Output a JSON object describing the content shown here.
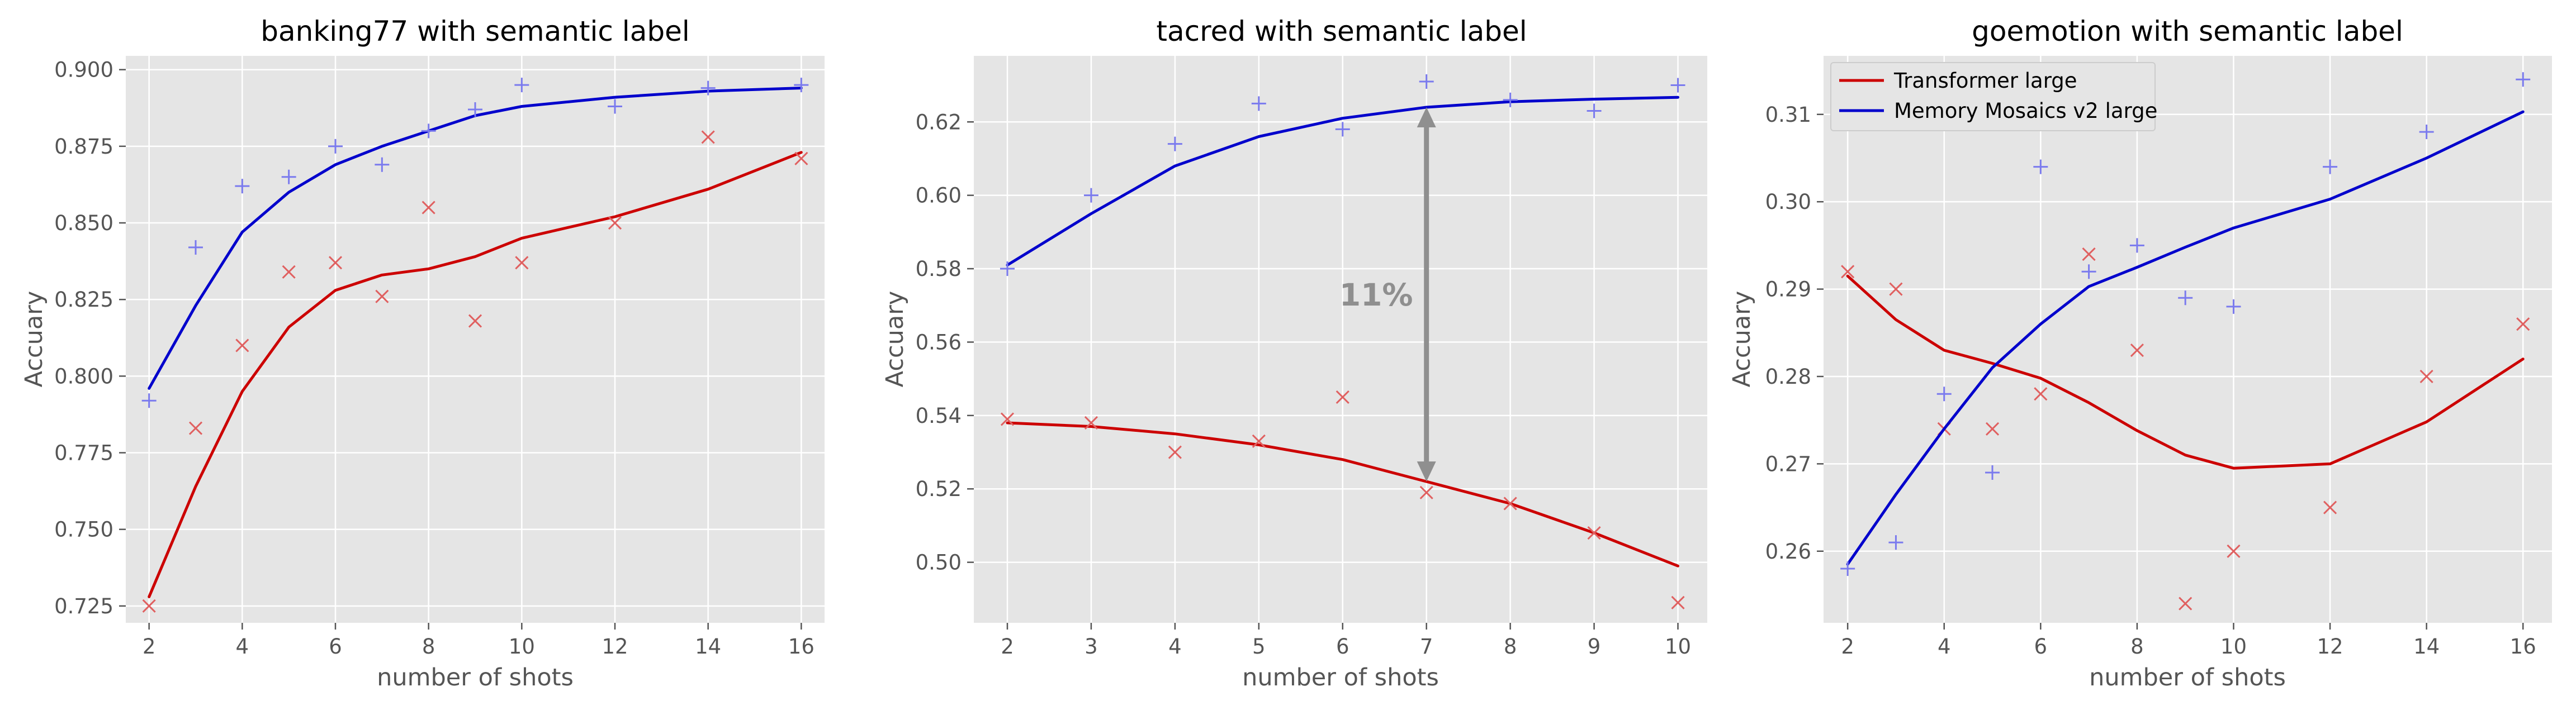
{
  "colors": {
    "transformer": "#cc0000",
    "memory": "#0000cc",
    "transformer_marker": "#e06060",
    "memory_marker": "#7a7aee",
    "panel_bg": "#e5e5e5",
    "grid": "#ffffff",
    "annotation": "#8f8f8f"
  },
  "chart_data": [
    {
      "type": "line",
      "title": "banking77 with semantic label",
      "xlabel": "number of shots",
      "ylabel": "Accuary",
      "xlim": [
        1.5,
        16.5
      ],
      "ylim": [
        0.7195,
        0.9045
      ],
      "xticks": [
        2,
        4,
        6,
        8,
        10,
        12,
        14,
        16
      ],
      "xtick_labels": [
        "2",
        "4",
        "6",
        "8",
        "10",
        "12",
        "14",
        "16"
      ],
      "yticks": [
        0.725,
        0.75,
        0.775,
        0.8,
        0.825,
        0.85,
        0.875,
        0.9
      ],
      "ytick_labels": [
        "0.725",
        "0.750",
        "0.775",
        "0.800",
        "0.825",
        "0.850",
        "0.875",
        "0.900"
      ],
      "grid": true,
      "series": [
        {
          "name": "Transformer large",
          "style": "line",
          "color_key": "transformer",
          "x": [
            2,
            3,
            4,
            5,
            6,
            7,
            8,
            9,
            10,
            12,
            14,
            16
          ],
          "y": [
            0.728,
            0.764,
            0.795,
            0.816,
            0.828,
            0.833,
            0.835,
            0.839,
            0.845,
            0.852,
            0.861,
            0.873
          ]
        },
        {
          "name": "Transformer large",
          "style": "markers-x",
          "color_key": "transformer_marker",
          "x": [
            2,
            3,
            4,
            5,
            6,
            7,
            8,
            9,
            10,
            12,
            14,
            16
          ],
          "y": [
            0.725,
            0.783,
            0.81,
            0.834,
            0.837,
            0.826,
            0.855,
            0.818,
            0.837,
            0.85,
            0.878,
            0.871
          ]
        },
        {
          "name": "Memory Mosaics v2 large",
          "style": "line",
          "color_key": "memory",
          "x": [
            2,
            3,
            4,
            5,
            6,
            7,
            8,
            9,
            10,
            12,
            14,
            16
          ],
          "y": [
            0.796,
            0.823,
            0.847,
            0.86,
            0.869,
            0.875,
            0.88,
            0.885,
            0.888,
            0.891,
            0.893,
            0.894
          ]
        },
        {
          "name": "Memory Mosaics v2 large",
          "style": "markers-plus",
          "color_key": "memory_marker",
          "x": [
            2,
            3,
            4,
            5,
            6,
            7,
            8,
            9,
            10,
            12,
            14,
            16
          ],
          "y": [
            0.792,
            0.842,
            0.862,
            0.865,
            0.875,
            0.869,
            0.88,
            0.887,
            0.895,
            0.888,
            0.894,
            0.895
          ]
        }
      ]
    },
    {
      "type": "line",
      "title": "tacred with semantic label",
      "xlabel": "number of shots",
      "ylabel": "Accuary",
      "xlim": [
        1.6,
        10.35
      ],
      "ylim": [
        0.4835,
        0.638
      ],
      "xticks": [
        2,
        3,
        4,
        5,
        6,
        7,
        8,
        9,
        10
      ],
      "xtick_labels": [
        "2",
        "3",
        "4",
        "5",
        "6",
        "7",
        "8",
        "9",
        "10"
      ],
      "yticks": [
        0.5,
        0.52,
        0.54,
        0.56,
        0.58,
        0.6,
        0.62
      ],
      "ytick_labels": [
        "0.50",
        "0.52",
        "0.54",
        "0.56",
        "0.58",
        "0.60",
        "0.62"
      ],
      "grid": true,
      "annotation": {
        "text": "11%",
        "x": 7,
        "y_top": 0.624,
        "y_bottom": 0.522,
        "text_x": 6.4,
        "text_y": 0.573
      },
      "series": [
        {
          "name": "Transformer large",
          "style": "line",
          "color_key": "transformer",
          "x": [
            2,
            3,
            4,
            5,
            6,
            7,
            8,
            9,
            10
          ],
          "y": [
            0.538,
            0.537,
            0.535,
            0.532,
            0.528,
            0.522,
            0.516,
            0.508,
            0.499
          ]
        },
        {
          "name": "Transformer large",
          "style": "markers-x",
          "color_key": "transformer_marker",
          "x": [
            2,
            3,
            4,
            5,
            6,
            7,
            8,
            9,
            10
          ],
          "y": [
            0.539,
            0.538,
            0.53,
            0.533,
            0.545,
            0.519,
            0.516,
            0.508,
            0.489
          ]
        },
        {
          "name": "Memory Mosaics v2 large",
          "style": "line",
          "color_key": "memory",
          "x": [
            2,
            3,
            4,
            5,
            6,
            7,
            8,
            9,
            10
          ],
          "y": [
            0.581,
            0.595,
            0.608,
            0.616,
            0.621,
            0.624,
            0.6255,
            0.6262,
            0.6267
          ]
        },
        {
          "name": "Memory Mosaics v2 large",
          "style": "markers-plus",
          "color_key": "memory_marker",
          "x": [
            2,
            3,
            4,
            5,
            6,
            7,
            8,
            9,
            10
          ],
          "y": [
            0.58,
            0.6,
            0.614,
            0.625,
            0.618,
            0.631,
            0.626,
            0.623,
            0.63
          ]
        }
      ]
    },
    {
      "type": "line",
      "title": "goemotion with semantic label",
      "xlabel": "number of shots",
      "ylabel": "Accuary",
      "xlim": [
        1.5,
        16.6
      ],
      "ylim": [
        0.2518,
        0.3167
      ],
      "xticks": [
        2,
        4,
        6,
        8,
        10,
        12,
        14,
        16
      ],
      "xtick_labels": [
        "2",
        "4",
        "6",
        "8",
        "10",
        "12",
        "14",
        "16"
      ],
      "yticks": [
        0.26,
        0.27,
        0.28,
        0.29,
        0.3,
        0.31
      ],
      "ytick_labels": [
        "0.26",
        "0.27",
        "0.28",
        "0.29",
        "0.30",
        "0.31"
      ],
      "grid": true,
      "legend": {
        "position": "upper left",
        "entries": [
          {
            "label": "Transformer large",
            "color_key": "transformer"
          },
          {
            "label": "Memory Mosaics v2 large",
            "color_key": "memory"
          }
        ]
      },
      "series": [
        {
          "name": "Transformer large",
          "style": "line",
          "color_key": "transformer",
          "x": [
            2,
            3,
            4,
            5,
            6,
            7,
            8,
            9,
            10,
            12,
            14,
            16
          ],
          "y": [
            0.2915,
            0.2865,
            0.283,
            0.2815,
            0.2798,
            0.277,
            0.2738,
            0.271,
            0.2695,
            0.27,
            0.2748,
            0.282
          ]
        },
        {
          "name": "Transformer large",
          "style": "markers-x",
          "color_key": "transformer_marker",
          "x": [
            2,
            3,
            4,
            5,
            6,
            7,
            8,
            9,
            10,
            12,
            14,
            16
          ],
          "y": [
            0.292,
            0.29,
            0.274,
            0.274,
            0.278,
            0.294,
            0.283,
            0.254,
            0.26,
            0.265,
            0.28,
            0.286
          ]
        },
        {
          "name": "Memory Mosaics v2 large",
          "style": "line",
          "color_key": "memory",
          "x": [
            2,
            3,
            4,
            5,
            6,
            7,
            8,
            9,
            10,
            12,
            14,
            16
          ],
          "y": [
            0.2585,
            0.2665,
            0.274,
            0.281,
            0.286,
            0.2903,
            0.2925,
            0.2948,
            0.297,
            0.3003,
            0.305,
            0.3103
          ]
        },
        {
          "name": "Memory Mosaics v2 large",
          "style": "markers-plus",
          "color_key": "memory_marker",
          "x": [
            2,
            3,
            4,
            5,
            6,
            7,
            8,
            9,
            10,
            12,
            14,
            16
          ],
          "y": [
            0.258,
            0.261,
            0.278,
            0.269,
            0.304,
            0.292,
            0.295,
            0.289,
            0.288,
            0.304,
            0.308,
            0.314
          ]
        }
      ]
    }
  ]
}
